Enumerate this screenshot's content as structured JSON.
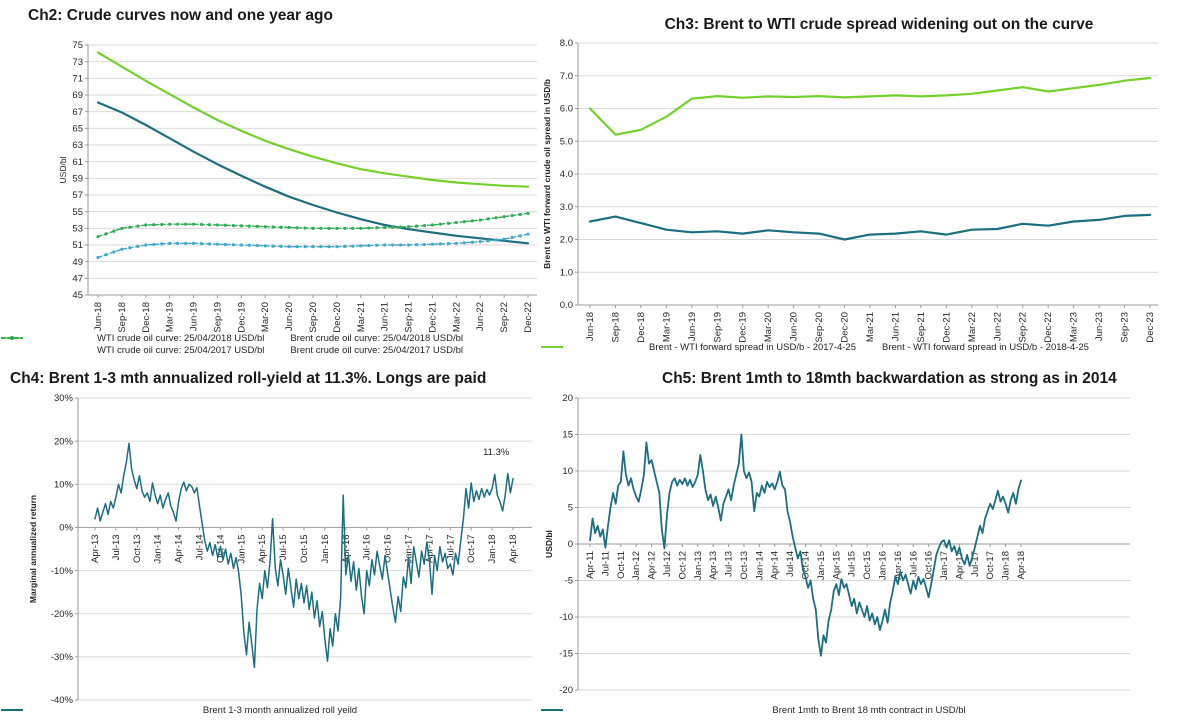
{
  "colors": {
    "teal": "#1b6f80",
    "green": "#76d02b",
    "lightblue": "#41a9c9",
    "midgreen": "#2fae55",
    "grid": "#d9d9d9",
    "axis": "#9b9b9b",
    "text": "#262626",
    "title": "#1a1a1a"
  },
  "chart_data": [
    {
      "id": "ch2",
      "type": "line",
      "title": "Ch2: Crude curves now and one year ago",
      "ylabel": "USD/bl",
      "ylabel_bold": false,
      "ylim": [
        45,
        75
      ],
      "ystep": 2,
      "ytick_labels": [
        "75",
        "73",
        "71",
        "69",
        "67",
        "65",
        "63",
        "61",
        "59",
        "57",
        "55",
        "53",
        "51",
        "49",
        "47",
        "45"
      ],
      "grid": true,
      "legend_position": "bottom",
      "categories": [
        "Jun-18",
        "Sep-18",
        "Dec-18",
        "Mar-19",
        "Jun-19",
        "Sep-19",
        "Dec-19",
        "Mar-20",
        "Jun-20",
        "Sep-20",
        "Dec-20",
        "Mar-21",
        "Jun-21",
        "Sep-21",
        "Dec-21",
        "Mar-22",
        "Jun-22",
        "Sep-22",
        "Dec-22"
      ],
      "series": [
        {
          "name": "WTI crude oil curve: 25/04/2018 USD/bl",
          "color": "teal",
          "width": 2.2,
          "values": [
            68.1,
            66.9,
            65.4,
            63.8,
            62.2,
            60.7,
            59.3,
            58.0,
            56.8,
            55.8,
            54.9,
            54.1,
            53.4,
            52.9,
            52.5,
            52.1,
            51.8,
            51.5,
            51.2
          ]
        },
        {
          "name": "Brent crude oil curve: 25/04/2018 USD/bl",
          "color": "green",
          "width": 2.2,
          "values": [
            74.1,
            72.4,
            70.7,
            69.1,
            67.5,
            66.0,
            64.7,
            63.5,
            62.5,
            61.6,
            60.8,
            60.1,
            59.6,
            59.2,
            58.8,
            58.5,
            58.3,
            58.1,
            58.0
          ]
        },
        {
          "name": "WTI crude oil curve: 25/04/2017 USD/bl",
          "color": "lightblue",
          "width": 1.4,
          "dash": "4 2.5",
          "marker": true,
          "values": [
            49.5,
            50.5,
            51.0,
            51.2,
            51.2,
            51.1,
            51.0,
            50.9,
            50.8,
            50.8,
            50.8,
            50.9,
            51.0,
            51.0,
            51.1,
            51.2,
            51.4,
            51.7,
            52.3
          ]
        },
        {
          "name": "Brent crude oil curve: 25/04/2017 USD/bl",
          "color": "midgreen",
          "width": 1.4,
          "dash": "4 2.5",
          "marker": true,
          "values": [
            52.0,
            53.0,
            53.4,
            53.5,
            53.5,
            53.4,
            53.3,
            53.2,
            53.1,
            53.0,
            53.0,
            53.0,
            53.1,
            53.2,
            53.4,
            53.7,
            54.0,
            54.4,
            54.8
          ]
        }
      ],
      "legend_rows": [
        [
          0,
          1
        ],
        [
          2,
          3
        ]
      ]
    },
    {
      "id": "ch3",
      "type": "line",
      "title": "Ch3: Brent to WTI crude spread widening out on the curve",
      "ylabel": "Brent to WTI forward crude oil spread in USD/b",
      "ylabel_bold": true,
      "ylim": [
        0,
        8
      ],
      "ystep": 1,
      "ytick_labels": [
        "8.0",
        "7.0",
        "6.0",
        "5.0",
        "4.0",
        "3.0",
        "2.0",
        "1.0",
        "0.0"
      ],
      "grid": true,
      "legend_position": "bottom",
      "categories": [
        "Jun-18",
        "Sep-18",
        "Dec-18",
        "Mar-19",
        "Jun-19",
        "Sep-19",
        "Dec-19",
        "Mar-20",
        "Jun-20",
        "Sep-20",
        "Dec-20",
        "Mar-21",
        "Jun-21",
        "Sep-21",
        "Dec-21",
        "Mar-22",
        "Jun-22",
        "Sep-22",
        "Dec-22",
        "Mar-23",
        "Jun-23",
        "Sep-23",
        "Dec-23"
      ],
      "series": [
        {
          "name": "Brent - WTI forward spread in USD/b - 2017-4-25",
          "color": "teal",
          "width": 2.2,
          "values": [
            2.55,
            2.7,
            2.5,
            2.3,
            2.22,
            2.25,
            2.18,
            2.28,
            2.22,
            2.18,
            2.0,
            2.15,
            2.18,
            2.25,
            2.15,
            2.3,
            2.32,
            2.48,
            2.42,
            2.55,
            2.6,
            2.72,
            2.75
          ]
        },
        {
          "name": "Brent - WTI forward spread in USD/b - 2018-4-25",
          "color": "green",
          "width": 2.2,
          "values": [
            6.0,
            5.2,
            5.35,
            5.75,
            6.3,
            6.38,
            6.33,
            6.37,
            6.35,
            6.38,
            6.34,
            6.37,
            6.4,
            6.37,
            6.4,
            6.45,
            6.55,
            6.65,
            6.52,
            6.62,
            6.72,
            6.85,
            6.93
          ]
        }
      ],
      "legend_rows": [
        [
          0,
          1
        ]
      ]
    },
    {
      "id": "ch4",
      "type": "line",
      "title": "Ch4: Brent 1-3 mth annualized roll-yield at 11.3%. Longs are paid",
      "ylabel": "Marginal annualized return",
      "ylabel_bold": true,
      "ylim": [
        -40,
        30
      ],
      "ystep": 10,
      "ytick_labels": [
        "30%",
        "20%",
        "10%",
        "0%",
        "-10%",
        "-20%",
        "-30%",
        "-40%"
      ],
      "grid": true,
      "xaxis_at_zero": true,
      "annotation": {
        "text": "11.3%",
        "x_frac": 0.95,
        "y_value": 16.8
      },
      "categories": [
        "Apr-13",
        "Jul-13",
        "Oct-13",
        "Jan-14",
        "Apr-14",
        "Jul-14",
        "Oct-14",
        "Jan-15",
        "Apr-15",
        "Jul-15",
        "Oct-15",
        "Jan-16",
        "Apr-16",
        "Jul-16",
        "Oct-16",
        "Jan-17",
        "Apr-17",
        "Jul-17",
        "Oct-17",
        "Jan-18",
        "Apr-18"
      ],
      "series": [
        {
          "name": "Brent 1-3 month annualized roll yeild",
          "color": "teal",
          "width": 1.5,
          "values": [
            2.0,
            4.5,
            1.5,
            3.5,
            5.5,
            3.0,
            6.0,
            4.5,
            7.0,
            10.0,
            8.0,
            12.0,
            15.0,
            19.5,
            13.5,
            11.0,
            9.0,
            12.0,
            8.5,
            7.0,
            8.0,
            6.0,
            10.3,
            7.5,
            5.5,
            7.5,
            4.5,
            6.5,
            8.0,
            5.0,
            3.5,
            1.5,
            6.0,
            9.0,
            10.5,
            8.5,
            10.0,
            9.5,
            8.0,
            9.2,
            5.0,
            1.0,
            -3.0,
            -5.5,
            -3.5,
            -6.5,
            -4.0,
            -7.0,
            -4.5,
            -7.5,
            -5.0,
            -8.5,
            -6.0,
            -9.5,
            -7.0,
            -10.5,
            -16.0,
            -24.5,
            -29.5,
            -22.0,
            -27.0,
            -32.5,
            -19.0,
            -13.0,
            -16.5,
            -10.0,
            -14.0,
            -8.0,
            2.0,
            -9.5,
            -13.5,
            -7.5,
            -11.0,
            -15.5,
            -9.5,
            -14.0,
            -18.5,
            -12.0,
            -16.5,
            -13.0,
            -17.5,
            -13.5,
            -19.0,
            -15.0,
            -21.0,
            -17.0,
            -23.0,
            -19.5,
            -26.0,
            -31.0,
            -23.5,
            -27.5,
            -20.0,
            -24.0,
            -16.5,
            7.5,
            -11.0,
            -6.5,
            -12.5,
            -8.0,
            -14.5,
            -9.5,
            -16.0,
            -20.0,
            -10.0,
            -13.5,
            -7.5,
            -11.0,
            -5.5,
            -9.0,
            -12.0,
            -6.5,
            -10.5,
            -14.5,
            -18.5,
            -22.0,
            -16.0,
            -19.5,
            -11.5,
            -14.0,
            -7.0,
            -13.0,
            -4.5,
            -8.0,
            -11.5,
            -5.5,
            -8.5,
            -3.5,
            -7.5,
            -15.5,
            -6.5,
            -10.0,
            -4.5,
            -8.0,
            -6.0,
            -9.5,
            -8.5,
            -11.0,
            -6.0,
            -8.5,
            -3.0,
            2.0,
            9.0,
            4.5,
            10.3,
            6.0,
            8.5,
            6.5,
            9.0,
            7.0,
            8.8,
            7.5,
            9.0,
            12.3,
            7.5,
            6.0,
            3.8,
            7.5,
            12.5,
            8.0,
            11.3
          ]
        }
      ],
      "legend_rows": [
        [
          0
        ]
      ]
    },
    {
      "id": "ch5",
      "type": "line",
      "title": "Ch5: Brent 1mth to 18mth backwardation as strong as in 2014",
      "ylabel": "USD/bl",
      "ylabel_bold": true,
      "ylim": [
        -20,
        20
      ],
      "ystep": 5,
      "ytick_labels": [
        "20",
        "15",
        "10",
        "5",
        "0",
        "-5",
        "-10",
        "-15",
        "-20"
      ],
      "grid": true,
      "xaxis_at_zero": true,
      "categories": [
        "Apr-11",
        "Jul-11",
        "Oct-11",
        "Jan-12",
        "Apr-12",
        "Jul-12",
        "Oct-12",
        "Jan-13",
        "Apr-13",
        "Jul-13",
        "Oct-13",
        "Jan-14",
        "Apr-14",
        "Jul-14",
        "Oct-14",
        "Jan-15",
        "Apr-15",
        "Jul-15",
        "Oct-15",
        "Jan-16",
        "Apr-16",
        "Jul-16",
        "Oct-16",
        "Jan-17",
        "Apr-17",
        "Jul-17",
        "Oct-17",
        "Jan-18",
        "Apr-18"
      ],
      "series": [
        {
          "name": "Brent 1mth to Brent 18 mth contract in USD/bl",
          "color": "teal",
          "width": 1.8,
          "values": [
            0.5,
            3.5,
            1.5,
            2.5,
            1.0,
            2.0,
            -0.5,
            2.5,
            5.0,
            7.0,
            5.5,
            8.0,
            8.5,
            12.7,
            9.5,
            8.0,
            9.0,
            7.5,
            6.5,
            5.8,
            7.5,
            9.5,
            13.9,
            11.0,
            11.5,
            10.0,
            8.5,
            7.0,
            2.0,
            -0.6,
            4.0,
            7.0,
            8.5,
            9.0,
            8.0,
            8.8,
            8.2,
            9.0,
            8.0,
            8.8,
            7.8,
            8.5,
            9.5,
            12.2,
            10.0,
            7.5,
            6.0,
            6.8,
            5.2,
            6.5,
            5.0,
            3.2,
            5.5,
            6.5,
            7.5,
            6.0,
            8.0,
            9.5,
            11.0,
            15.0,
            10.0,
            9.0,
            9.8,
            8.5,
            4.5,
            7.0,
            6.5,
            8.0,
            7.0,
            8.5,
            7.8,
            8.3,
            7.5,
            8.5,
            9.9,
            8.0,
            7.5,
            4.5,
            3.0,
            1.0,
            -0.5,
            -2.0,
            -1.0,
            -3.5,
            -4.5,
            -6.0,
            -5.0,
            -7.5,
            -9.0,
            -13.0,
            -15.3,
            -12.5,
            -13.5,
            -10.5,
            -9.0,
            -6.5,
            -5.5,
            -7.0,
            -4.8,
            -6.0,
            -5.5,
            -7.0,
            -8.5,
            -7.5,
            -9.5,
            -8.0,
            -9.0,
            -10.0,
            -8.5,
            -10.5,
            -9.5,
            -11.0,
            -10.0,
            -11.8,
            -10.5,
            -9.0,
            -10.8,
            -8.0,
            -6.5,
            -4.5,
            -5.5,
            -3.8,
            -5.0,
            -4.2,
            -5.5,
            -6.8,
            -5.0,
            -6.2,
            -4.5,
            -5.5,
            -4.8,
            -6.0,
            -7.3,
            -5.5,
            -3.5,
            -1.5,
            -0.5,
            0.3,
            0.5,
            -0.5,
            0.5,
            -1.0,
            -0.3,
            -1.5,
            -0.5,
            -2.0,
            -2.8,
            -1.5,
            -3.0,
            -1.8,
            -0.5,
            1.0,
            2.5,
            1.5,
            3.5,
            4.5,
            5.5,
            4.8,
            6.0,
            7.3,
            5.8,
            6.5,
            5.5,
            4.3,
            6.0,
            7.0,
            5.5,
            7.5,
            8.7
          ]
        }
      ],
      "legend_rows": [
        [
          0
        ]
      ]
    }
  ]
}
